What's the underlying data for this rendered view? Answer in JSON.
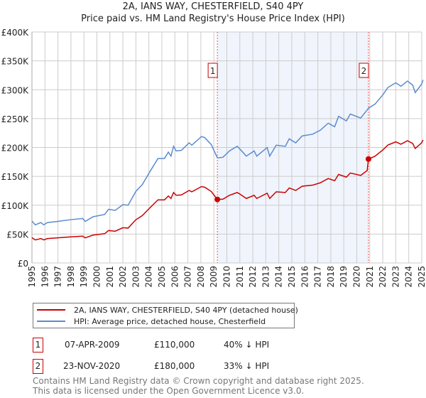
{
  "title": "2A, IANS WAY, CHESTERFIELD, S40 4PY",
  "subtitle": "Price paid vs. HM Land Registry's House Price Index (HPI)",
  "chart_data": {
    "type": "line",
    "title": "2A, IANS WAY, CHESTERFIELD, S40 4PY — Price paid vs. HM Land Registry's House Price Index (HPI)",
    "xlim": [
      1995,
      2025.1
    ],
    "ylim": [
      0,
      400000
    ],
    "y_ticks": [
      0,
      50000,
      100000,
      150000,
      200000,
      250000,
      300000,
      350000,
      400000
    ],
    "y_tick_labels": [
      "£0",
      "£50K",
      "£100K",
      "£150K",
      "£200K",
      "£250K",
      "£300K",
      "£350K",
      "£400K"
    ],
    "x_ticks": [
      1995,
      1996,
      1997,
      1998,
      1999,
      2000,
      2001,
      2002,
      2003,
      2004,
      2005,
      2006,
      2007,
      2008,
      2009,
      2010,
      2011,
      2012,
      2013,
      2014,
      2015,
      2016,
      2017,
      2018,
      2019,
      2020,
      2021,
      2022,
      2023,
      2024,
      2025
    ],
    "grid": true,
    "legend_position": "below",
    "shaded_range": [
      2009.27,
      2020.9
    ],
    "x": [
      1995.0,
      1995.25,
      1995.7,
      1995.9,
      1996.2,
      1997.0,
      1998.0,
      1998.9,
      1999.1,
      1999.7,
      2000.6,
      2000.9,
      2001.4,
      2002.0,
      2002.4,
      2003.0,
      2003.5,
      2004.1,
      2004.7,
      2005.2,
      2005.5,
      2005.7,
      2005.9,
      2006.1,
      2006.5,
      2007.1,
      2007.3,
      2008.05,
      2008.3,
      2008.8,
      2009.27,
      2009.7,
      2010.2,
      2010.8,
      2011.1,
      2011.5,
      2012.1,
      2012.3,
      2013.1,
      2013.3,
      2013.8,
      2014.5,
      2014.8,
      2015.3,
      2015.8,
      2016.6,
      2017.2,
      2017.8,
      2018.3,
      2018.6,
      2019.2,
      2019.5,
      2020.3,
      2020.8,
      2020.9,
      2021.4,
      2022.0,
      2022.4,
      2023.0,
      2023.4,
      2023.9,
      2024.3,
      2024.5,
      2025.0,
      2025.1
    ],
    "series": [
      {
        "name": "2A, IANS WAY, CHESTERFIELD, S40 4PY (detached house)",
        "color": "#cc0000",
        "values": [
          43800,
          39900,
          42300,
          39900,
          42300,
          43500,
          45300,
          46500,
          43500,
          48300,
          50700,
          56200,
          55000,
          61000,
          60400,
          74900,
          82100,
          96000,
          109300,
          109300,
          116000,
          111700,
          122000,
          117200,
          117800,
          125600,
          123200,
          132300,
          131100,
          123800,
          110000,
          110500,
          117200,
          122000,
          117800,
          111700,
          117200,
          111700,
          120800,
          111700,
          123200,
          122000,
          129900,
          125600,
          132900,
          134700,
          138900,
          146200,
          142500,
          153400,
          148600,
          155800,
          151600,
          160100,
          180000,
          184800,
          195600,
          204300,
          209700,
          205600,
          211700,
          207000,
          198200,
          208300,
          213000
        ]
      },
      {
        "name": "HPI: Average price, detached house, Chesterfield",
        "color": "#5b8bd0",
        "values": [
          72600,
          66000,
          70000,
          66000,
          70000,
          72000,
          75000,
          77000,
          72000,
          80000,
          84000,
          93000,
          91000,
          101000,
          100000,
          124000,
          136000,
          159000,
          181000,
          181000,
          192000,
          185000,
          202000,
          194000,
          195000,
          208000,
          204000,
          219000,
          217000,
          205000,
          182000,
          183000,
          194000,
          202000,
          195000,
          185000,
          194000,
          185000,
          200000,
          185000,
          204000,
          202000,
          215000,
          208000,
          220000,
          223000,
          230000,
          242000,
          236000,
          254000,
          246000,
          258000,
          251000,
          265000,
          268000,
          275000,
          291000,
          304000,
          312000,
          306000,
          315000,
          308000,
          295000,
          310000,
          317000
        ]
      }
    ],
    "annotations": [
      {
        "label": "1",
        "x": 2009.27,
        "value": 110000
      },
      {
        "label": "2",
        "x": 2020.9,
        "value": 180000
      }
    ]
  },
  "legend": [
    "2A, IANS WAY, CHESTERFIELD, S40 4PY (detached house)",
    "HPI: Average price, detached house, Chesterfield"
  ],
  "sales": [
    {
      "num": "1",
      "date": "07-APR-2009",
      "price": "£110,000",
      "hpi": "40% ↓ HPI"
    },
    {
      "num": "2",
      "date": "23-NOV-2020",
      "price": "£180,000",
      "hpi": "33% ↓ HPI"
    }
  ],
  "footer": [
    "Contains HM Land Registry data © Crown copyright and database right 2025.",
    "This data is licensed under the Open Government Licence v3.0."
  ]
}
